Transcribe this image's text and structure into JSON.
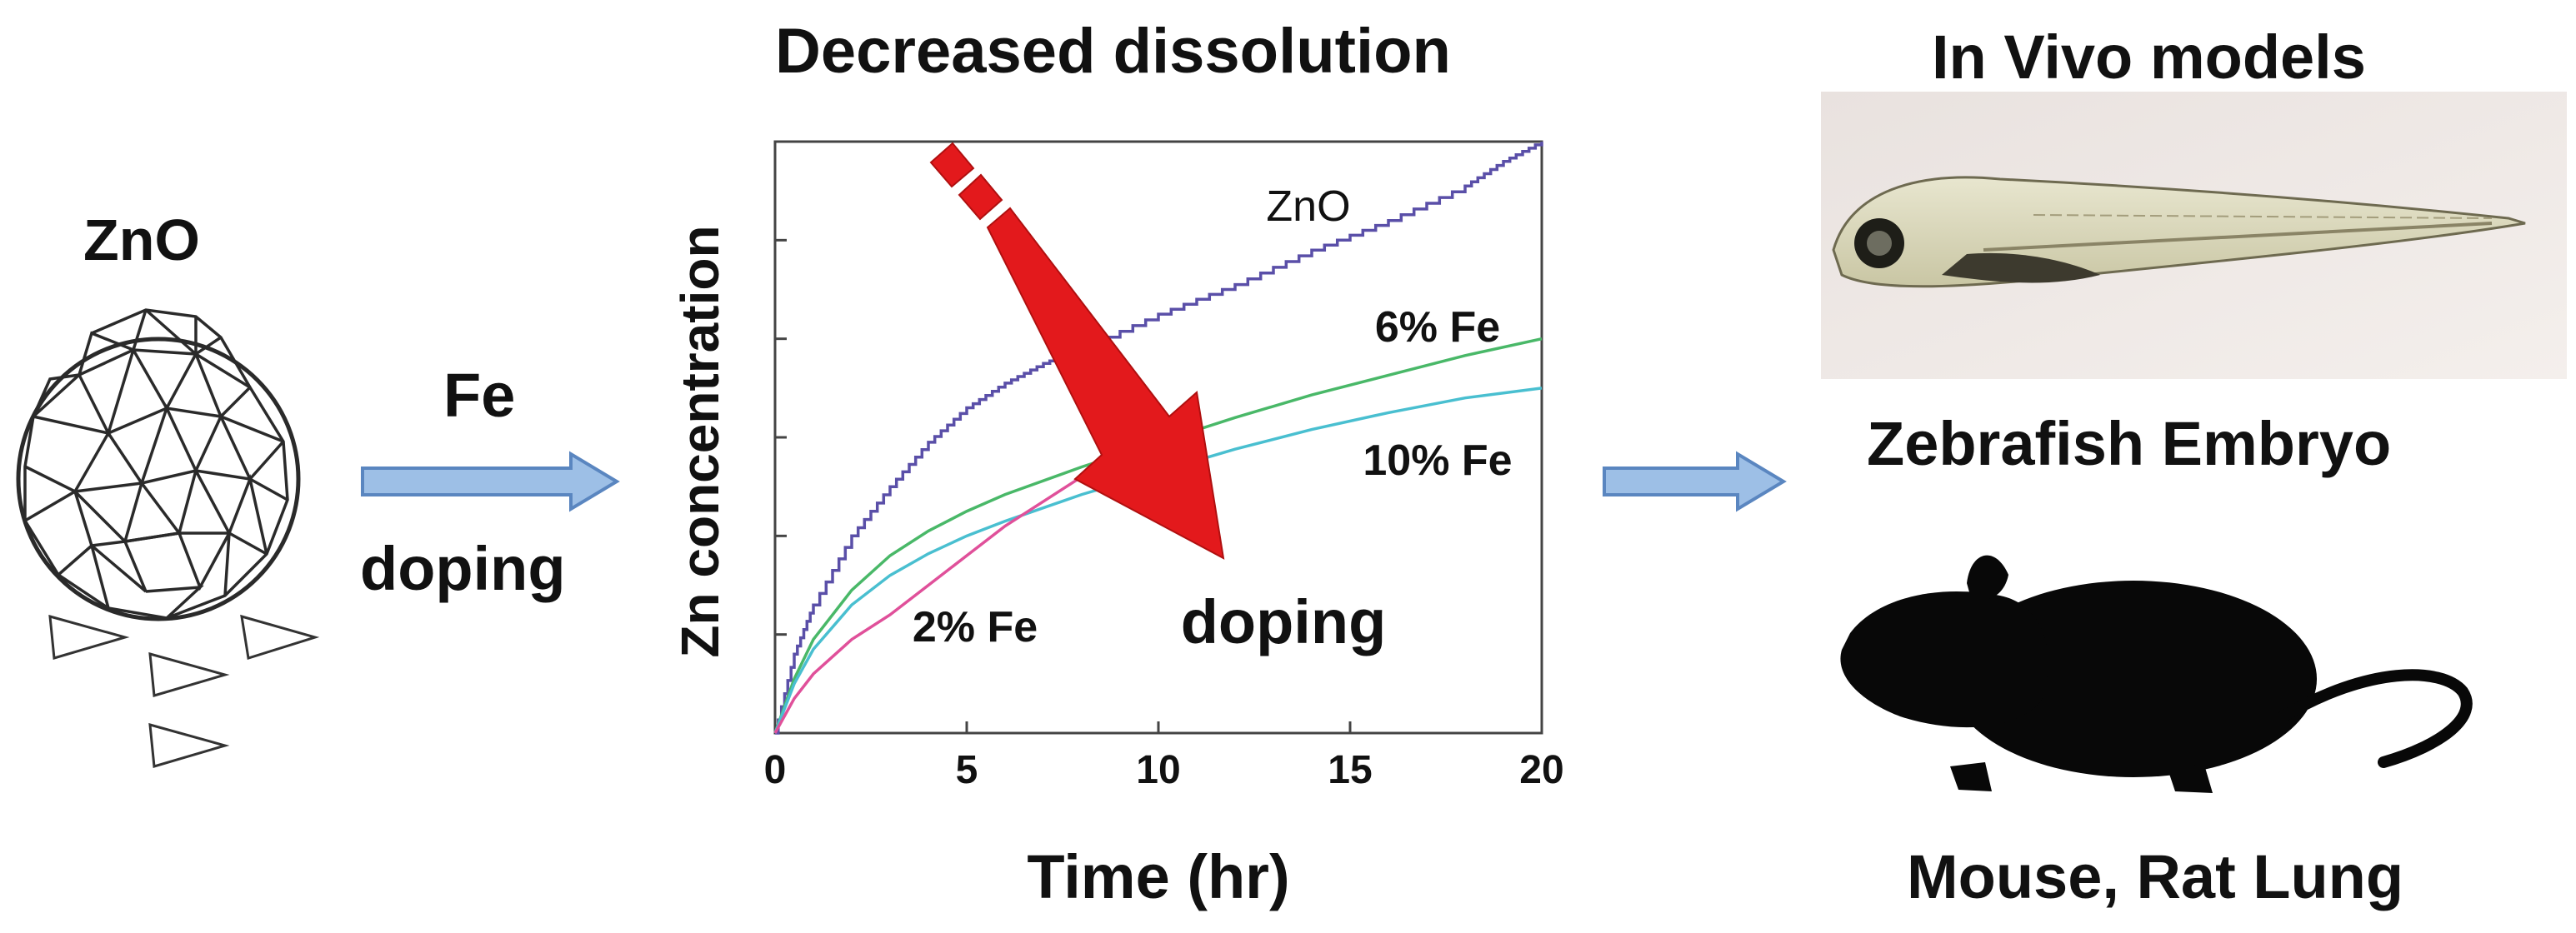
{
  "left_panel": {
    "particle_label": "ZnO",
    "arrow_top_label": "Fe",
    "arrow_bottom_label": "doping"
  },
  "center_panel": {
    "title": "Decreased dissolution"
  },
  "right_panel": {
    "title": "In Vivo models",
    "zebrafish_label": "Zebrafish Embryo",
    "mouse_label": "Mouse, Rat Lung"
  },
  "colors": {
    "arrow_fill": "#9dbfe6",
    "arrow_stroke": "#5a86c0",
    "trend_arrow": "#e3191c",
    "zno": "#5a4fa8",
    "fe6": "#49b868",
    "fe10": "#49bfd0",
    "fe2": "#e0509a"
  },
  "chart_data": {
    "type": "line",
    "title": "Decreased dissolution",
    "xlabel": "Time (hr)",
    "ylabel": "Zn concentration",
    "xlim": [
      0,
      20
    ],
    "ylim": [
      0,
      6
    ],
    "xticks": [
      0,
      5,
      10,
      15,
      20
    ],
    "yticks": [
      1,
      2,
      3,
      4,
      5
    ],
    "y_tick_labels_shown": false,
    "series": [
      {
        "name": "ZnO",
        "label": "ZnO",
        "color": "#5a4fa8",
        "x": [
          0,
          0.5,
          1,
          2,
          3,
          4,
          5,
          6,
          7,
          8,
          10,
          12,
          14,
          16,
          18,
          19,
          20
        ],
        "y": [
          0,
          0.8,
          1.3,
          2.0,
          2.5,
          2.95,
          3.3,
          3.55,
          3.75,
          3.9,
          4.25,
          4.55,
          4.9,
          5.2,
          5.55,
          5.8,
          6.0
        ]
      },
      {
        "name": "6% Fe",
        "label": "6% Fe",
        "color": "#49b868",
        "x": [
          0,
          0.5,
          1,
          2,
          3,
          4,
          5,
          6,
          8,
          10,
          12,
          14,
          16,
          18,
          20
        ],
        "y": [
          0,
          0.55,
          0.95,
          1.45,
          1.8,
          2.05,
          2.25,
          2.42,
          2.7,
          2.95,
          3.2,
          3.43,
          3.63,
          3.83,
          4.0
        ]
      },
      {
        "name": "10% Fe",
        "label": "10% Fe",
        "color": "#49bfd0",
        "x": [
          0,
          0.5,
          1,
          2,
          3,
          4,
          5,
          6,
          8,
          10,
          12,
          14,
          16,
          18,
          20
        ],
        "y": [
          0,
          0.5,
          0.85,
          1.3,
          1.6,
          1.82,
          2.0,
          2.15,
          2.42,
          2.65,
          2.88,
          3.08,
          3.25,
          3.4,
          3.5
        ]
      },
      {
        "name": "2% Fe",
        "label": "2% Fe",
        "color": "#e0509a",
        "x": [
          0,
          0.5,
          1,
          2,
          3,
          4,
          5,
          6,
          7,
          8
        ],
        "y": [
          0,
          0.35,
          0.6,
          0.95,
          1.2,
          1.5,
          1.8,
          2.1,
          2.35,
          2.6
        ]
      }
    ],
    "annotations": [
      {
        "text": "doping",
        "note": "large red arrow indicating decreasing dissolution with doping"
      }
    ]
  }
}
